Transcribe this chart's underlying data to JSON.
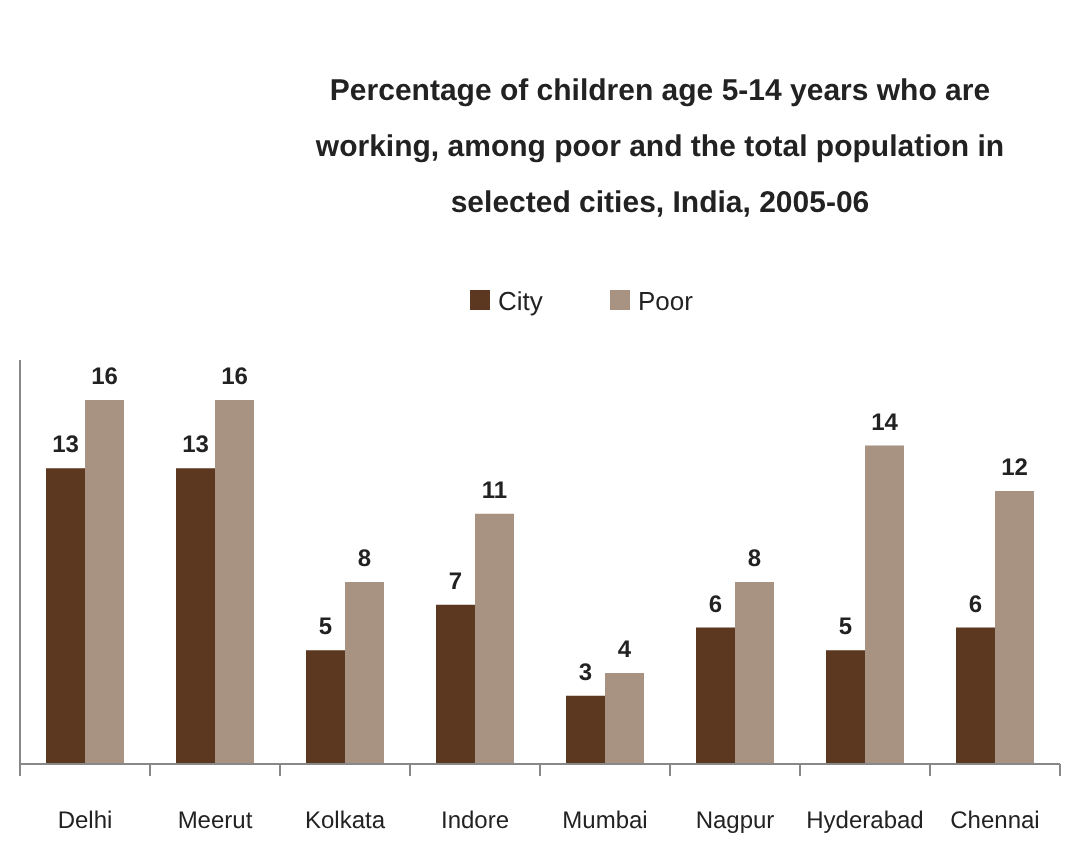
{
  "chart_data": {
    "type": "bar",
    "title": "Percentage of children age 5-14 years who are working, among poor and the total population in selected cities, India, 2005-06",
    "categories": [
      "Delhi",
      "Meerut",
      "Kolkata",
      "Indore",
      "Mumbai",
      "Nagpur",
      "Hyderabad",
      "Chennai"
    ],
    "series": [
      {
        "name": "City",
        "color": "#5c3820",
        "values": [
          13,
          13,
          5,
          7,
          3,
          6,
          5,
          6
        ]
      },
      {
        "name": "Poor",
        "color": "#a89282",
        "values": [
          16,
          16,
          8,
          11,
          4,
          8,
          14,
          12
        ]
      }
    ],
    "data_labels": true,
    "legend": "top",
    "grid": false
  }
}
